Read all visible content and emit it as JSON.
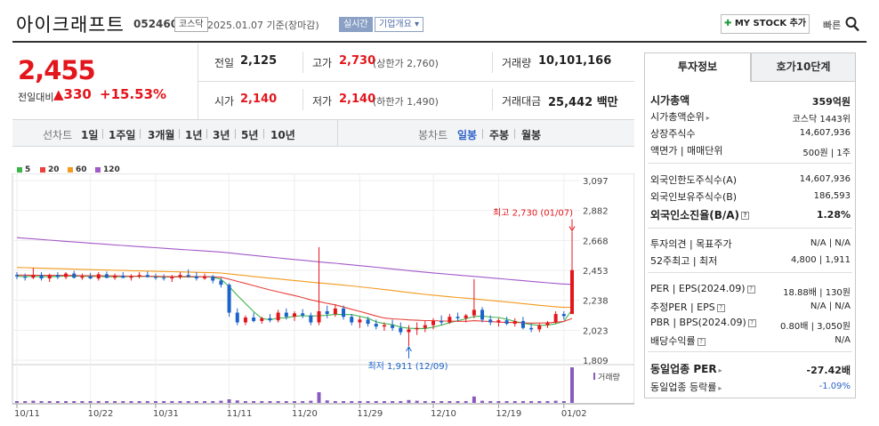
{
  "header": {
    "name": "아이크래프트",
    "code": "052460",
    "market": "코스닥",
    "date_text": "2025.01.07 기준(장마감)",
    "realtime_label": "실시간",
    "info_label": "기업개요 ▾",
    "mystock_label": "MY STOCK 추가",
    "quick_label": "빠른"
  },
  "price": {
    "current": "2,455",
    "change_label": "전일대비",
    "change_amount": "330",
    "change_pct": "+15.53%"
  },
  "quote": {
    "prev_label": "전일",
    "prev": "2,125",
    "high_label": "고가",
    "high": "2,730",
    "upper_limit": "(상한가 2,760)",
    "volume_label": "거래량",
    "volume": "10,101,166",
    "open_label": "시가",
    "open": "2,140",
    "low_label": "저가",
    "low": "2,140",
    "lower_limit": "(하한가 1,490)",
    "value_label": "거래대금",
    "value": "25,442 백만"
  },
  "toolbar": {
    "line_label": "선차트",
    "periods": [
      "1일",
      "1주일",
      "3개월",
      "1년",
      "3년",
      "5년",
      "10년"
    ],
    "candle_label": "봉차트",
    "candle_types": [
      "일봉",
      "주봉",
      "월봉"
    ]
  },
  "chart_data": {
    "type": "candlestick",
    "legend": [
      "5",
      "20",
      "60",
      "120"
    ],
    "legend_colors": [
      "#3cb54a",
      "#e8403a",
      "#f39a1e",
      "#a259c9"
    ],
    "y_ticks": [
      "3,097",
      "2,882",
      "2,668",
      "2,453",
      "2,238",
      "2,023",
      "1,809"
    ],
    "x_ticks": [
      "10/11",
      "10/22",
      "10/31",
      "11/11",
      "11/20",
      "11/29",
      "12/10",
      "12/19",
      "01/02"
    ],
    "ylim": [
      1809,
      3097
    ],
    "high_annotation": "최고 2,730 (01/07)",
    "low_annotation": "최저 1,911 (12/09)",
    "volume_label": "거래량",
    "candles": [
      [
        2420,
        2440,
        2390,
        2410
      ],
      [
        2410,
        2430,
        2380,
        2400
      ],
      [
        2400,
        2470,
        2390,
        2420
      ],
      [
        2420,
        2440,
        2380,
        2395
      ],
      [
        2395,
        2430,
        2370,
        2420
      ],
      [
        2420,
        2440,
        2390,
        2405
      ],
      [
        2405,
        2440,
        2390,
        2430
      ],
      [
        2430,
        2450,
        2395,
        2400
      ],
      [
        2400,
        2430,
        2385,
        2410
      ],
      [
        2410,
        2435,
        2390,
        2395
      ],
      [
        2395,
        2440,
        2380,
        2425
      ],
      [
        2425,
        2445,
        2395,
        2400
      ],
      [
        2400,
        2430,
        2385,
        2415
      ],
      [
        2415,
        2440,
        2395,
        2400
      ],
      [
        2400,
        2425,
        2380,
        2410
      ],
      [
        2410,
        2440,
        2395,
        2420
      ],
      [
        2420,
        2445,
        2400,
        2405
      ],
      [
        2405,
        2430,
        2385,
        2400
      ],
      [
        2400,
        2425,
        2380,
        2395
      ],
      [
        2395,
        2420,
        2370,
        2405
      ],
      [
        2405,
        2440,
        2390,
        2420
      ],
      [
        2420,
        2460,
        2400,
        2410
      ],
      [
        2410,
        2440,
        2380,
        2395
      ],
      [
        2395,
        2430,
        2385,
        2410
      ],
      [
        2410,
        2420,
        2360,
        2380
      ],
      [
        2380,
        2400,
        2330,
        2350
      ],
      [
        2350,
        2360,
        2120,
        2150
      ],
      [
        2150,
        2180,
        2060,
        2080
      ],
      [
        2080,
        2130,
        2060,
        2115
      ],
      [
        2115,
        2150,
        2080,
        2090
      ],
      [
        2090,
        2120,
        2070,
        2110
      ],
      [
        2110,
        2140,
        2080,
        2095
      ],
      [
        2095,
        2170,
        2080,
        2150
      ],
      [
        2150,
        2180,
        2100,
        2120
      ],
      [
        2120,
        2160,
        2090,
        2145
      ],
      [
        2145,
        2175,
        2110,
        2130
      ],
      [
        2130,
        2150,
        2060,
        2080
      ],
      [
        2080,
        2620,
        2060,
        2160
      ],
      [
        2160,
        2200,
        2110,
        2140
      ],
      [
        2140,
        2210,
        2120,
        2180
      ],
      [
        2180,
        2200,
        2100,
        2120
      ],
      [
        2120,
        2140,
        2060,
        2080
      ],
      [
        2080,
        2120,
        2040,
        2100
      ],
      [
        2100,
        2120,
        2050,
        2070
      ],
      [
        2070,
        2100,
        2030,
        2050
      ],
      [
        2050,
        2080,
        2020,
        2060
      ],
      [
        2060,
        2100,
        2020,
        2040
      ],
      [
        2040,
        2080,
        1990,
        2010
      ],
      [
        2010,
        2060,
        1911,
        2030
      ],
      [
        2030,
        2080,
        1990,
        2040
      ],
      [
        2040,
        2090,
        2010,
        2060
      ],
      [
        2060,
        2110,
        2030,
        2090
      ],
      [
        2090,
        2130,
        2060,
        2080
      ],
      [
        2080,
        2140,
        2070,
        2120
      ],
      [
        2120,
        2150,
        2090,
        2110
      ],
      [
        2110,
        2140,
        2080,
        2130
      ],
      [
        2130,
        2390,
        2110,
        2170
      ],
      [
        2170,
        2190,
        2080,
        2100
      ],
      [
        2100,
        2130,
        2060,
        2080
      ],
      [
        2080,
        2110,
        2050,
        2095
      ],
      [
        2095,
        2120,
        2060,
        2070
      ],
      [
        2070,
        2110,
        2050,
        2090
      ],
      [
        2090,
        2120,
        2030,
        2040
      ],
      [
        2040,
        2070,
        2010,
        2030
      ],
      [
        2030,
        2070,
        2010,
        2060
      ],
      [
        2060,
        2090,
        2040,
        2080
      ],
      [
        2080,
        2160,
        2070,
        2140
      ],
      [
        2140,
        2160,
        2100,
        2125
      ],
      [
        2140,
        2730,
        2140,
        2455
      ]
    ],
    "volumes": [
      0.05,
      0.05,
      0.06,
      0.05,
      0.05,
      0.05,
      0.05,
      0.05,
      0.05,
      0.05,
      0.05,
      0.05,
      0.05,
      0.05,
      0.05,
      0.05,
      0.05,
      0.05,
      0.05,
      0.05,
      0.05,
      0.05,
      0.05,
      0.05,
      0.05,
      0.06,
      0.1,
      0.07,
      0.05,
      0.05,
      0.05,
      0.05,
      0.05,
      0.05,
      0.05,
      0.05,
      0.06,
      0.3,
      0.07,
      0.05,
      0.05,
      0.05,
      0.05,
      0.05,
      0.05,
      0.05,
      0.05,
      0.05,
      0.08,
      0.06,
      0.05,
      0.05,
      0.05,
      0.05,
      0.05,
      0.05,
      0.18,
      0.06,
      0.05,
      0.05,
      0.05,
      0.05,
      0.05,
      0.05,
      0.05,
      0.05,
      0.06,
      0.05,
      1.0
    ]
  },
  "panel": {
    "tab_active": "투자정보",
    "tab_inactive": "호가10단계",
    "rows": [
      {
        "label": "시가총액",
        "value": "359억원",
        "bold": true
      },
      {
        "label": "시가총액순위",
        "value": "코스닥 1443위",
        "arrow": true
      },
      {
        "label": "상장주식수",
        "value": "14,607,936"
      },
      {
        "label": "액면가 | 매매단위",
        "value": "500원 | 1주"
      },
      {
        "label": "외국인한도주식수(A)",
        "value": "14,607,936"
      },
      {
        "label": "외국인보유주식수(B)",
        "value": "186,593"
      },
      {
        "label": "외국인소진율(B/A)",
        "value": "1.28%",
        "bold": true,
        "help": true
      },
      {
        "label": "투자의견 | 목표주가",
        "value": "N/A | N/A"
      },
      {
        "label": "52주최고 | 최저",
        "value": "4,800 | 1,911"
      },
      {
        "label": "PER | EPS(2024.09)",
        "value": "18.88배 | 130원",
        "help": true
      },
      {
        "label": "추정PER | EPS",
        "value": "N/A | N/A",
        "help": true
      },
      {
        "label": "PBR | BPS(2024.09)",
        "value": "0.80배 | 3,050원",
        "help": true
      },
      {
        "label": "배당수익률",
        "value": "N/A",
        "help": true
      },
      {
        "label": "동일업종 PER",
        "value": "-27.42배",
        "bold": true,
        "arrow": true
      },
      {
        "label": "동일업종 등락률",
        "value": "-1.09%",
        "blue": true,
        "arrow": true
      }
    ]
  }
}
